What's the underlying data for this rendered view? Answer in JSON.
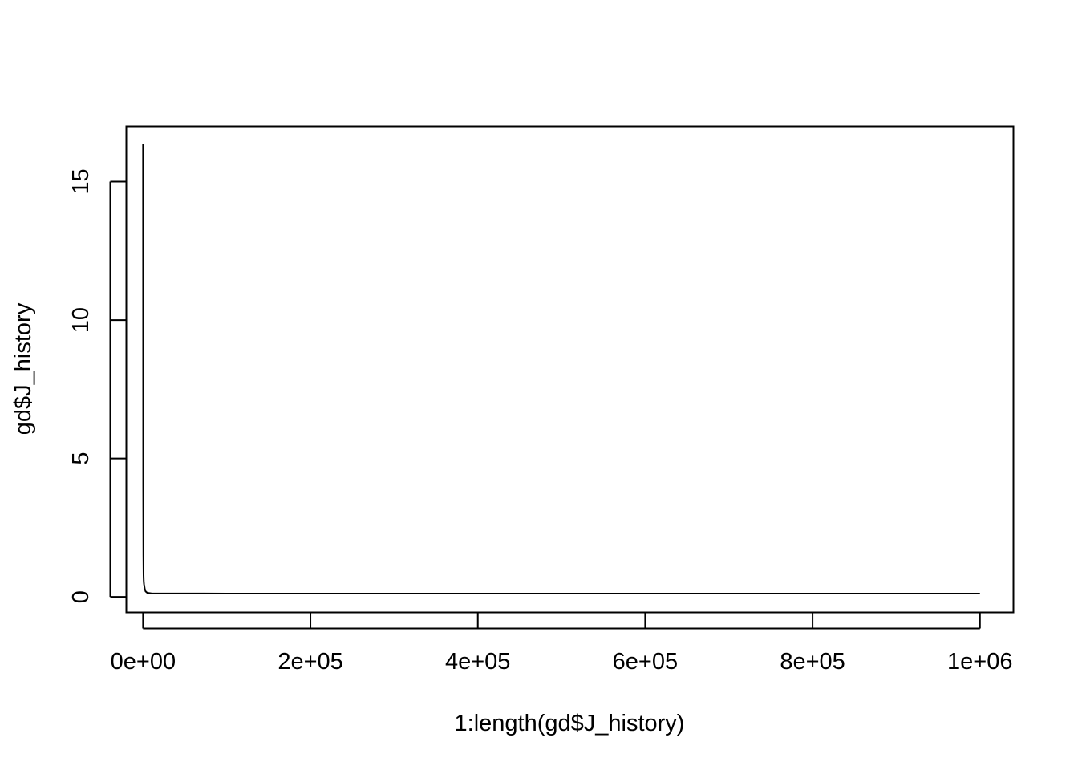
{
  "chart_data": {
    "type": "line",
    "title": "",
    "xlabel": "1:length(gd$J_history)",
    "ylabel": "gd$J_history",
    "xlim": [
      -20000,
      1040000
    ],
    "ylim": [
      -0.56,
      17.0
    ],
    "x_ticks": [
      {
        "value": 0,
        "label": "0e+00"
      },
      {
        "value": 200000,
        "label": "2e+05"
      },
      {
        "value": 400000,
        "label": "4e+05"
      },
      {
        "value": 600000,
        "label": "6e+05"
      },
      {
        "value": 800000,
        "label": "8e+05"
      },
      {
        "value": 1000000,
        "label": "1e+06"
      }
    ],
    "y_ticks": [
      {
        "value": 0,
        "label": "0"
      },
      {
        "value": 5,
        "label": "5"
      },
      {
        "value": 10,
        "label": "10"
      },
      {
        "value": 15,
        "label": "15"
      }
    ],
    "grid": false,
    "legend": "none",
    "color": "#000000",
    "series": [
      {
        "x": [
          1,
          200,
          400,
          600,
          800,
          1000,
          1200,
          1500,
          2000,
          3000,
          5000,
          10000,
          100000,
          500000,
          1000000
        ],
        "y": [
          16.35,
          4.0,
          1.5,
          0.8,
          0.6,
          0.5,
          0.45,
          0.4,
          0.3,
          0.2,
          0.15,
          0.13,
          0.12,
          0.12,
          0.12
        ]
      }
    ]
  }
}
